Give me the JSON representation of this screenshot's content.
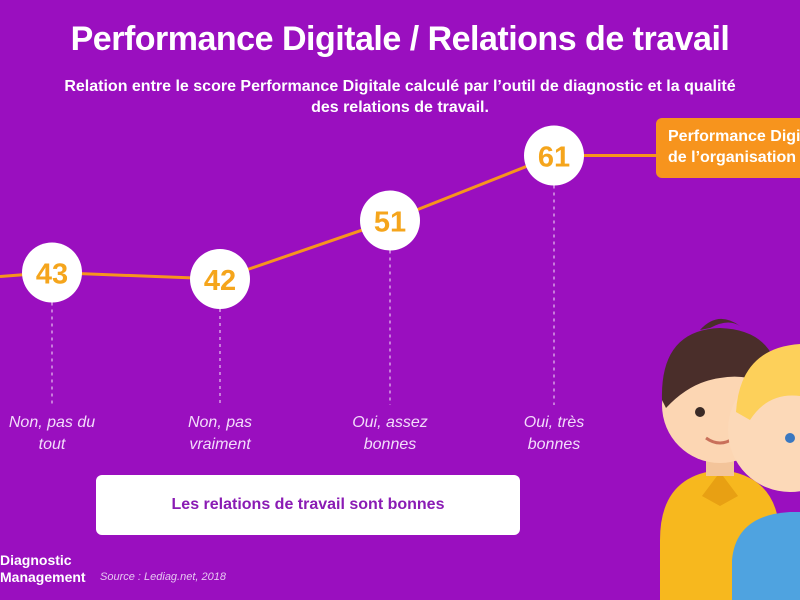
{
  "title": "Performance Digitale / Relations de travail",
  "subtitle": "Relation entre le score Performance Digitale calculé par l’outil de diagnostic et la qualité des relations de travail.",
  "callout": {
    "line1": "Performance Digitale",
    "line2": "de l’organisation"
  },
  "xaxis_label": "Les relations de travail sont bonnes",
  "brand": {
    "line1": "Diagnostic",
    "line2": "Management"
  },
  "source": "Source : Lediag.net, 2018",
  "colors": {
    "background": "#9a0fbf",
    "line": "#f7941d",
    "value_text": "#f5a51c",
    "axis_box_text": "#8a1bb4"
  },
  "chart_data": {
    "type": "line",
    "categories": [
      "Non, pas du tout",
      "Non, pas vraiment",
      "Oui, assez bonnes",
      "Oui, très bonnes"
    ],
    "category_lines": [
      [
        "Non, pas du",
        "tout"
      ],
      [
        "Non, pas",
        "vraiment"
      ],
      [
        "Oui, assez",
        "bonnes"
      ],
      [
        "Oui, très",
        "bonnes"
      ]
    ],
    "values": [
      43,
      42,
      51,
      61
    ],
    "title": "Performance Digitale / Relations de travail",
    "xlabel": "Les relations de travail sont bonnes",
    "ylabel": "Performance Digitale de l’organisation",
    "grid": false,
    "data_labels": true
  }
}
